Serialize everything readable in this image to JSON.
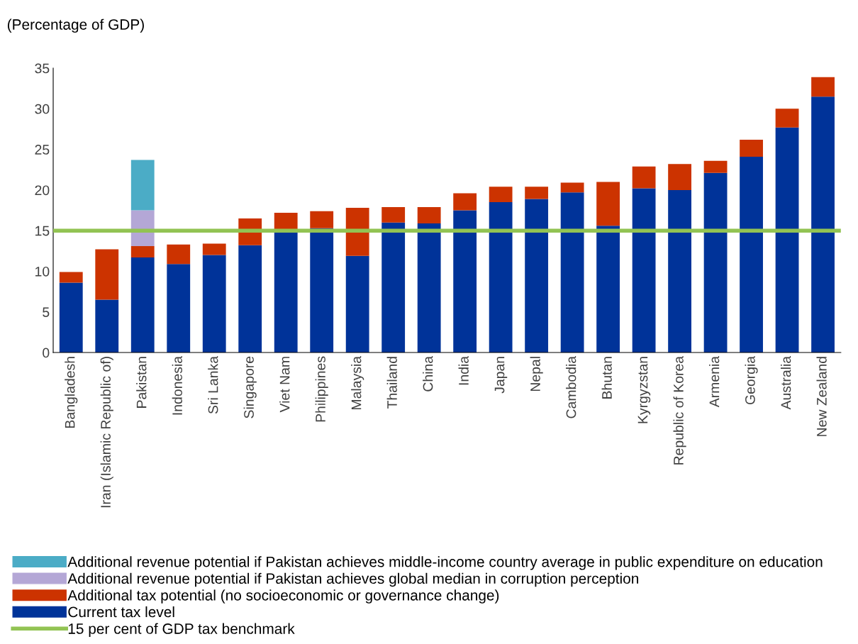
{
  "chart_data": {
    "type": "bar",
    "stacked": true,
    "title": "(Percentage of GDP)",
    "categories": [
      "Bangladesh",
      "Iran (Islamic Republic of)",
      "Pakistan",
      "Indonesia",
      "Sri Lanka",
      "Singapore",
      "Viet Nam",
      "Philippines",
      "Malaysia",
      "Thailand",
      "China",
      "India",
      "Japan",
      "Nepal",
      "Cambodia",
      "Bhutan",
      "Kyrgyzstan",
      "Republic of Korea",
      "Armenia",
      "Georgia",
      "Australia",
      "New Zealand"
    ],
    "series": [
      {
        "name": "Current tax level",
        "color": "#003399",
        "values": [
          8.6,
          6.5,
          11.7,
          10.9,
          12.0,
          13.2,
          14.9,
          15.3,
          11.9,
          16.0,
          15.9,
          17.5,
          18.5,
          18.9,
          19.7,
          15.6,
          20.2,
          20.0,
          22.1,
          24.1,
          27.7,
          31.5
        ]
      },
      {
        "name": "Additional tax potential (no socioeconomic or governance change)",
        "color": "#cc3300",
        "values": [
          1.3,
          6.2,
          1.4,
          2.4,
          1.4,
          3.3,
          2.3,
          2.1,
          5.9,
          1.9,
          2.0,
          2.1,
          1.9,
          1.5,
          1.2,
          5.4,
          2.7,
          3.2,
          1.5,
          2.1,
          2.3,
          2.4
        ]
      },
      {
        "name": "Additional revenue potential if Pakistan achieves global median in corruption perception",
        "color": "#b4a7d6",
        "values": [
          null,
          null,
          4.4,
          null,
          null,
          null,
          null,
          null,
          null,
          null,
          null,
          null,
          null,
          null,
          null,
          null,
          null,
          null,
          null,
          null,
          null,
          null
        ]
      },
      {
        "name": "Additional revenue potential if Pakistan achieves middle-income country average in public expenditure on education",
        "color": "#4bacc6",
        "values": [
          null,
          null,
          6.2,
          null,
          null,
          null,
          null,
          null,
          null,
          null,
          null,
          null,
          null,
          null,
          null,
          null,
          null,
          null,
          null,
          null,
          null,
          null
        ]
      }
    ],
    "ref_lines": [
      {
        "axis": "y",
        "value": 15,
        "label": "15 per cent of GDP tax benchmark",
        "color": "#92c353"
      }
    ],
    "ylim": [
      0,
      35
    ],
    "yticks": [
      0,
      5,
      10,
      15,
      20,
      25,
      30,
      35
    ],
    "grid": false,
    "legend": "bottom"
  }
}
